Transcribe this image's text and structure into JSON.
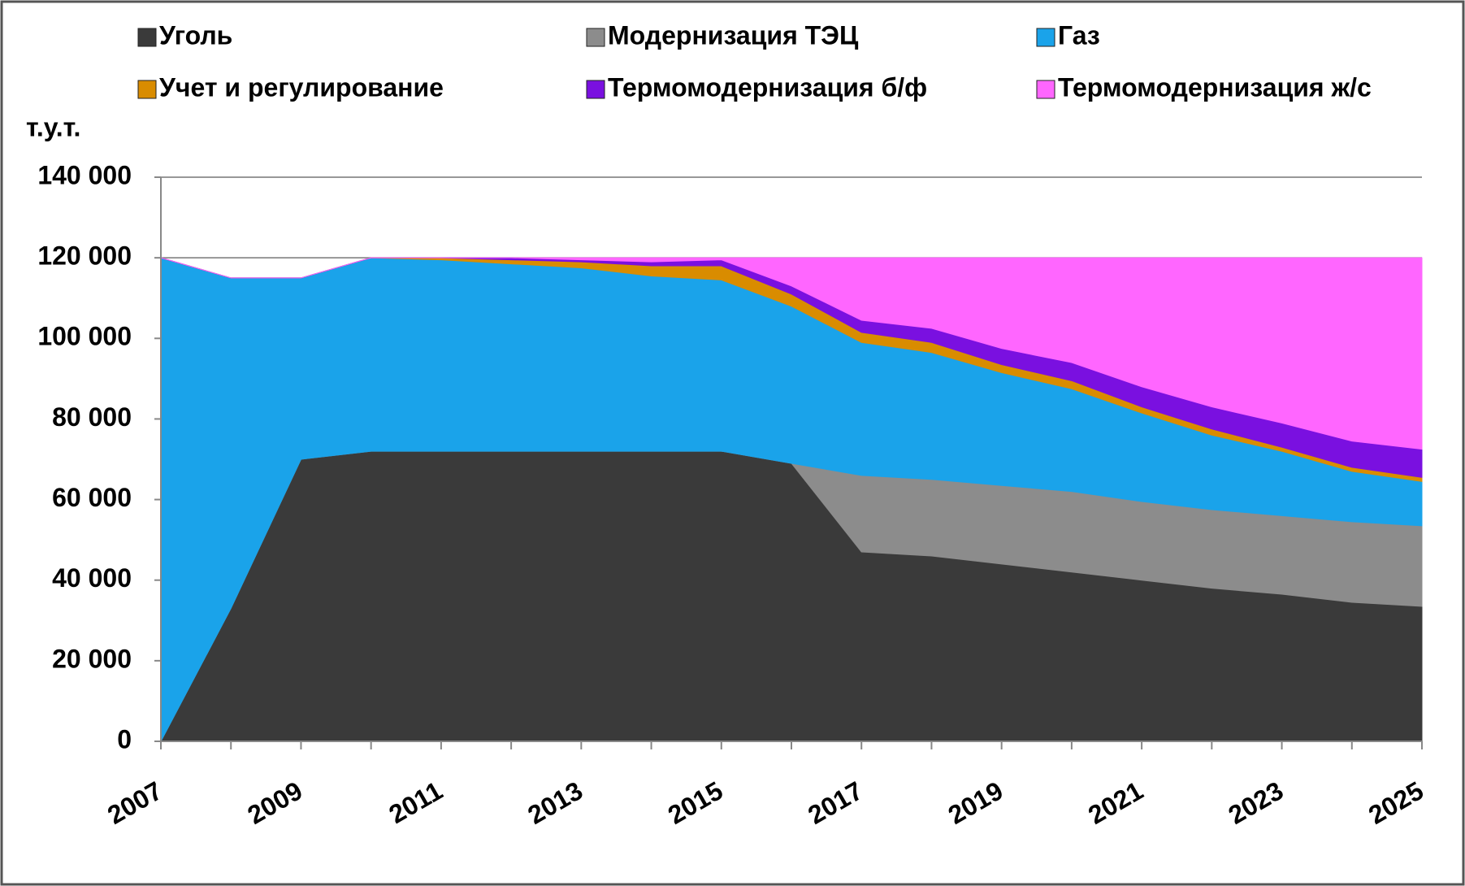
{
  "chart_data": {
    "type": "stacked_area",
    "y_label": "т.у.т.",
    "x": [
      2007,
      2008,
      2009,
      2010,
      2011,
      2012,
      2013,
      2014,
      2015,
      2016,
      2017,
      2018,
      2019,
      2020,
      2021,
      2022,
      2023,
      2024,
      2025
    ],
    "xlim": [
      2007,
      2025
    ],
    "xticks": [
      2007,
      2009,
      2011,
      2013,
      2015,
      2017,
      2019,
      2021,
      2023,
      2025
    ],
    "ylim": [
      0,
      140000
    ],
    "yticks": [
      0,
      {
        "value": 20000,
        "label": "20 000"
      },
      {
        "value": 40000,
        "label": "40 000"
      },
      {
        "value": 60000,
        "label": "60 000"
      },
      {
        "value": 80000,
        "label": "80 000"
      },
      {
        "value": 100000,
        "label": "100 000"
      },
      {
        "value": 120000,
        "label": "120 000"
      },
      {
        "value": 140000,
        "label": "140 000"
      }
    ],
    "grid": true,
    "legend": "top",
    "series": [
      {
        "name": "Уголь",
        "color": "#3a3a3a",
        "values": [
          0,
          33000,
          70000,
          72000,
          72000,
          72000,
          72000,
          72000,
          72000,
          69000,
          47000,
          46000,
          44000,
          42000,
          40000,
          38000,
          36500,
          34500,
          33500
        ]
      },
      {
        "name": "Модернизация ТЭЦ",
        "color": "#8c8c8c",
        "values": [
          0,
          0,
          0,
          0,
          0,
          0,
          0,
          0,
          0,
          0,
          19000,
          19000,
          19500,
          20000,
          19500,
          19500,
          19500,
          20000,
          20000
        ]
      },
      {
        "name": "Газ",
        "color": "#1aa3ea",
        "values": [
          120000,
          82000,
          45000,
          48000,
          47500,
          46500,
          45500,
          43500,
          42500,
          39000,
          33000,
          31500,
          28000,
          25500,
          22000,
          18500,
          16000,
          12500,
          11000
        ]
      },
      {
        "name": "Учет и регулирование",
        "color": "#d98c00",
        "values": [
          0,
          0,
          0,
          0,
          500,
          1000,
          1500,
          2500,
          3500,
          3000,
          2500,
          2500,
          2000,
          2000,
          1500,
          1500,
          1000,
          1000,
          1000
        ]
      },
      {
        "name": "Термомодернизация  б/ф",
        "color": "#7a10e0",
        "values": [
          0,
          0,
          0,
          0,
          0,
          500,
          500,
          1000,
          1500,
          2000,
          3000,
          3500,
          4000,
          4500,
          5000,
          5500,
          6000,
          6500,
          7000
        ]
      },
      {
        "name": "Термомодернизация ж/с",
        "color": "#ff66ff",
        "values": [
          0,
          0,
          0,
          0,
          0,
          0,
          500,
          1000,
          500,
          7000,
          15500,
          17500,
          22500,
          26000,
          32000,
          37000,
          41000,
          45500,
          47500
        ]
      }
    ]
  }
}
